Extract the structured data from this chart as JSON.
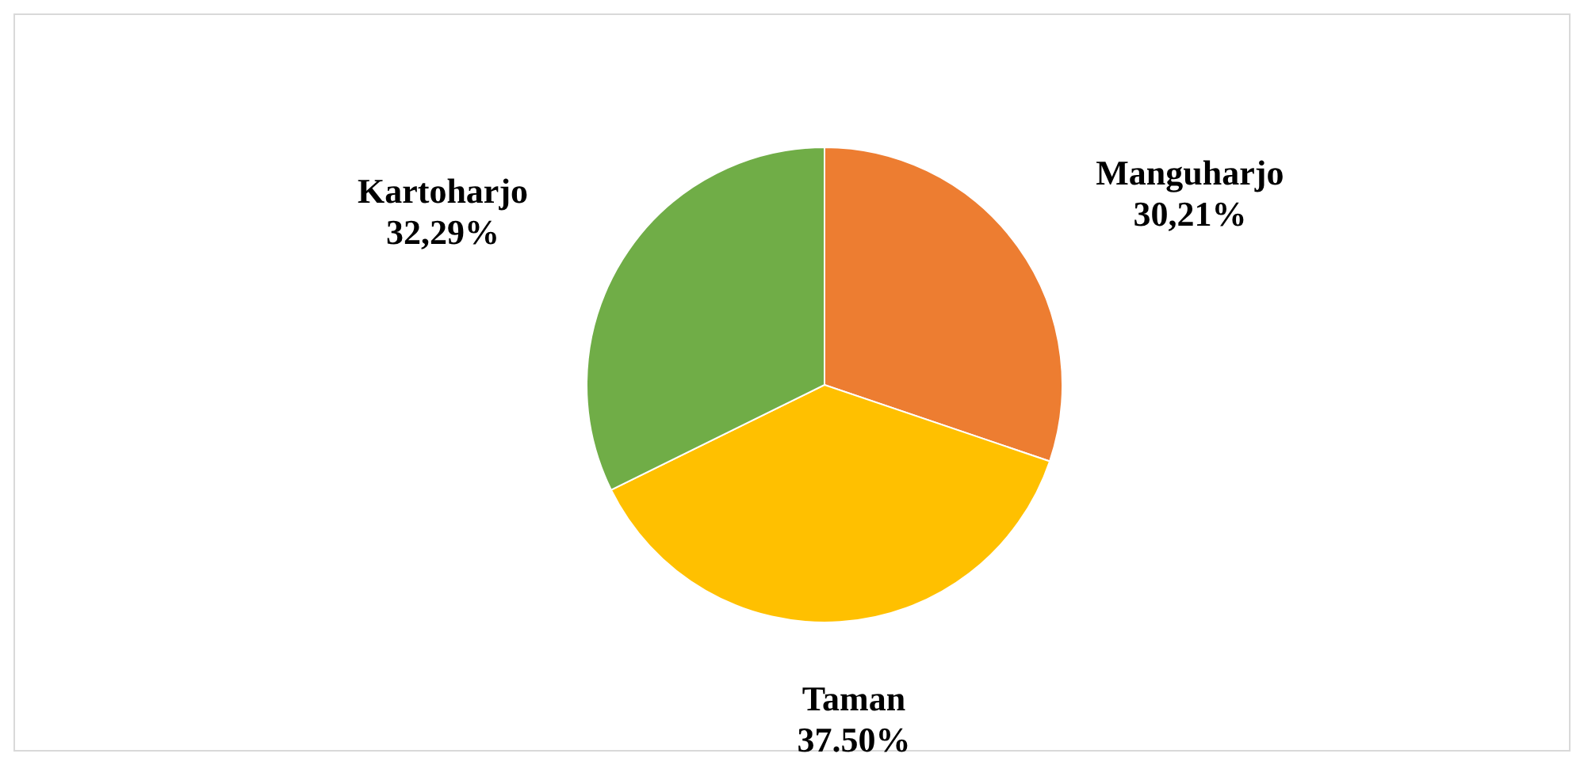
{
  "chart_data": {
    "type": "pie",
    "categories": [
      "Manguharjo",
      "Taman",
      "Kartoharjo"
    ],
    "values": [
      30.21,
      37.5,
      32.29
    ],
    "colors": [
      "#ed7d31",
      "#ffc000",
      "#70ad47"
    ],
    "value_labels": [
      "30,21%",
      "37.50%",
      "32,29%"
    ],
    "legend": false
  }
}
